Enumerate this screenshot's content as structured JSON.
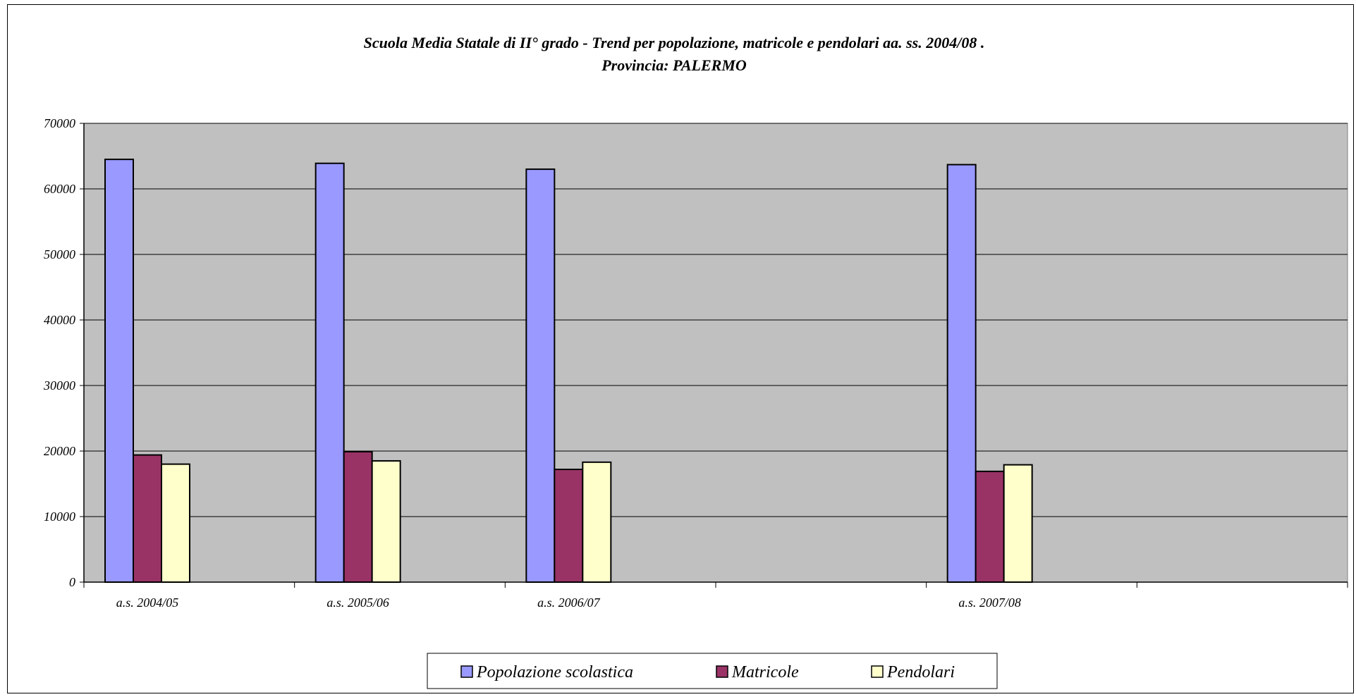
{
  "chart_data": {
    "type": "bar",
    "title": "Scuola Media Statale di II° grado - Trend per popolazione, matricole e pendolari aa. ss. 2004/08 .",
    "subtitle": "Provincia: PALERMO",
    "categories": [
      "a.s. 2004/05",
      "a.s. 2005/06",
      "a.s. 2006/07",
      "",
      "a.s. 2007/08"
    ],
    "series": [
      {
        "name": "Popolazione scolastica",
        "color": "#9999ff",
        "values": [
          64500,
          63900,
          63000,
          null,
          63700
        ]
      },
      {
        "name": "Matricole",
        "color": "#993366",
        "values": [
          19400,
          19900,
          17200,
          null,
          16900
        ]
      },
      {
        "name": "Pendolari",
        "color": "#ffffcc",
        "values": [
          18000,
          18500,
          18300,
          null,
          17900
        ]
      }
    ],
    "ylim": [
      0,
      70000
    ],
    "yticks": [
      0,
      10000,
      20000,
      30000,
      40000,
      50000,
      60000,
      70000
    ],
    "grid": true,
    "plot_background": "#c0c0c0",
    "legend": "bottom-center"
  }
}
